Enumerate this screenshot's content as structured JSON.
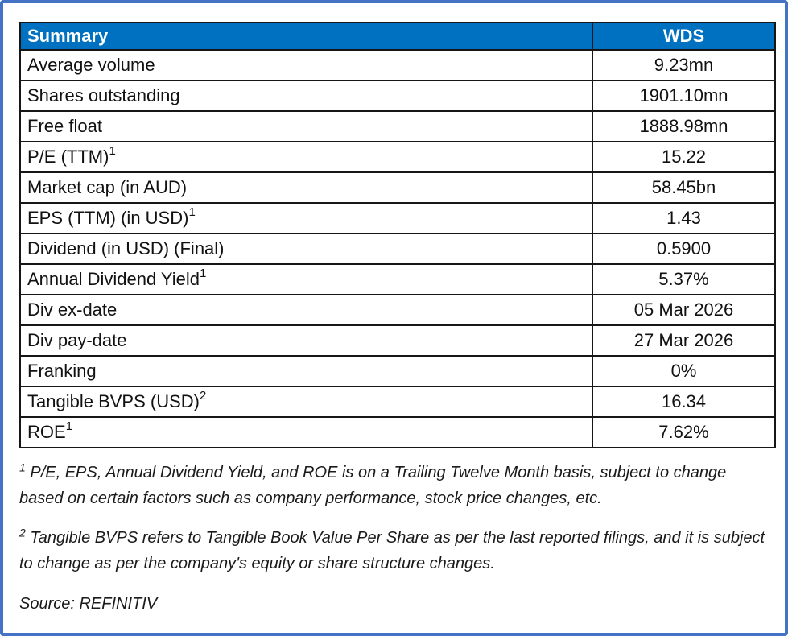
{
  "table": {
    "header": {
      "label": "Summary",
      "value": "WDS"
    },
    "rows": [
      {
        "label": "Average volume",
        "sup": "",
        "value": "9.23mn"
      },
      {
        "label": "Shares outstanding",
        "sup": "",
        "value": "1901.10mn"
      },
      {
        "label": "Free float",
        "sup": "",
        "value": "1888.98mn"
      },
      {
        "label": "P/E (TTM)",
        "sup": "1",
        "value": "15.22"
      },
      {
        "label": "Market cap (in AUD)",
        "sup": "",
        "value": "58.45bn"
      },
      {
        "label": "EPS (TTM) (in USD)",
        "sup": "1",
        "value": "1.43"
      },
      {
        "label": "Dividend (in USD) (Final)",
        "sup": "",
        "value": "0.5900"
      },
      {
        "label": "Annual Dividend Yield",
        "sup": "1",
        "value": "5.37%"
      },
      {
        "label": "Div ex-date",
        "sup": "",
        "value": "05 Mar 2026"
      },
      {
        "label": "Div pay-date",
        "sup": "",
        "value": "27 Mar 2026"
      },
      {
        "label": "Franking",
        "sup": "",
        "value": "0%"
      },
      {
        "label": "Tangible BVPS (USD)",
        "sup": "2",
        "value": "16.34"
      },
      {
        "label": "ROE",
        "sup": "1",
        "value": "7.62%"
      }
    ]
  },
  "footnotes": [
    {
      "sup": "1",
      "text": " P/E, EPS, Annual Dividend Yield, and ROE is on a Trailing Twelve Month basis, subject to change based on certain factors such as company performance, stock price changes, etc."
    },
    {
      "sup": "2",
      "text": " Tangible BVPS refers to Tangible Book Value Per Share as per the last reported filings, and it is subject to change as per the company's equity or share structure changes."
    }
  ],
  "source_line": "Source: REFINITIV",
  "colors": {
    "header_bg": "#0070C0",
    "header_text": "#ffffff",
    "frame_border": "#4472C4",
    "grid": "#161616"
  }
}
